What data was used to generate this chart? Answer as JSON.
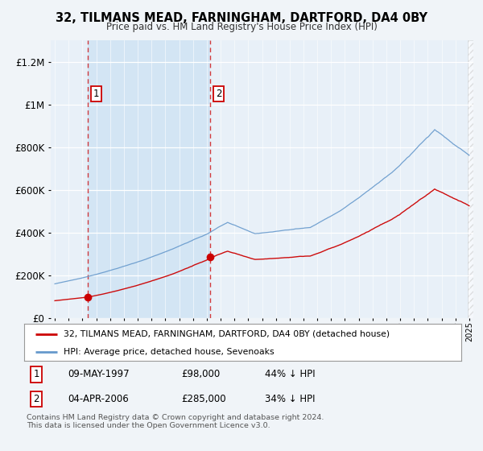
{
  "title": "32, TILMANS MEAD, FARNINGHAM, DARTFORD, DA4 0BY",
  "subtitle": "Price paid vs. HM Land Registry's House Price Index (HPI)",
  "property_label": "32, TILMANS MEAD, FARNINGHAM, DARTFORD, DA4 0BY (detached house)",
  "hpi_label": "HPI: Average price, detached house, Sevenoaks",
  "footer": "Contains HM Land Registry data © Crown copyright and database right 2024.\nThis data is licensed under the Open Government Licence v3.0.",
  "sale1_date": "09-MAY-1997",
  "sale1_price": "£98,000",
  "sale1_hpi": "44% ↓ HPI",
  "sale1_year": 1997.37,
  "sale1_value": 98000,
  "sale2_date": "04-APR-2006",
  "sale2_price": "£285,000",
  "sale2_hpi": "34% ↓ HPI",
  "sale2_year": 2006.25,
  "sale2_value": 285000,
  "property_color": "#cc0000",
  "hpi_color": "#6699cc",
  "bg_color": "#f0f4f8",
  "plot_bg": "#e8f0f8",
  "shade_color": "#d0e4f4",
  "ylim_max": 1300000,
  "xlim_start": 1994.7,
  "xlim_end": 2025.3
}
